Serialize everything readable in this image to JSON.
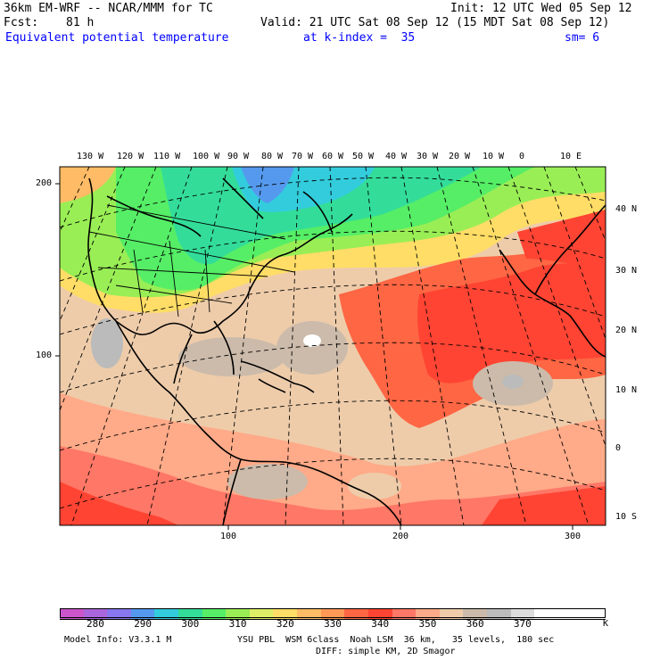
{
  "header": {
    "model_title": "36km EM-WRF -- NCAR/MMM for TC",
    "init": "Init: 12 UTC Wed 05 Sep 12",
    "fcst_label": "Fcst:",
    "fcst_hours": "81 h",
    "valid": "Valid: 21 UTC Sat 08 Sep 12 (15 MDT Sat 08 Sep 12)",
    "field_name": "Equivalent potential temperature",
    "level": "at k-index =  35",
    "smoothing": "sm= 6"
  },
  "map": {
    "top_longitudes": [
      "130 W",
      "120 W",
      "110 W",
      "100 W",
      "90 W",
      "80 W",
      "70 W",
      "60 W",
      "50 W",
      "40 W",
      "30 W",
      "20 W",
      "10 W",
      "0",
      "10 E"
    ],
    "right_latitudes": [
      "40 N",
      "30 N",
      "20 N",
      "10 N",
      "0",
      "10 S"
    ],
    "left_grid_ticks": [
      "200",
      "100"
    ],
    "bottom_grid_ticks": [
      "100",
      "200",
      "300"
    ]
  },
  "colorbar": {
    "colors": [
      "#cc55cc",
      "#aa66dd",
      "#8877ee",
      "#5599ee",
      "#33ccdd",
      "#33dd99",
      "#55ee66",
      "#99ee55",
      "#ddee66",
      "#ffdd66",
      "#ffbb66",
      "#ff9955",
      "#ff6644",
      "#ff4433",
      "#ff7766",
      "#ffaa88",
      "#eeccaa",
      "#ccbbaa",
      "#bbbbbb",
      "#dddddd",
      "#ffffff",
      "#ffffff",
      "#ffffff"
    ],
    "labels": [
      "280",
      "290",
      "300",
      "310",
      "320",
      "330",
      "340",
      "350",
      "360",
      "370"
    ],
    "unit": "K"
  },
  "footer": {
    "model_info": "Model Info: V3.3.1 M",
    "physics": "YSU PBL  WSM 6class  Noah LSM  36 km,   35 levels,  180 sec",
    "diffusion": "DIFF: simple KM, 2D Smagor"
  }
}
